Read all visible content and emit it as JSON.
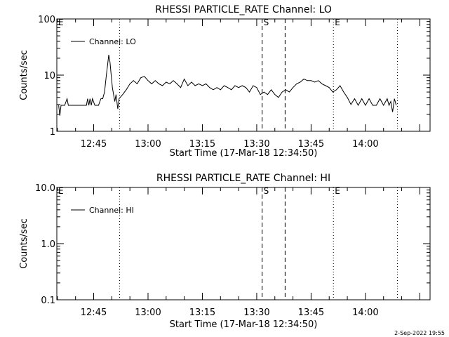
{
  "footer": {
    "timestamp": "2-Sep-2022 19:55"
  },
  "chart_data": [
    {
      "type": "line",
      "title": "RHESSI PARTICLE_RATE Channel: LO",
      "xlabel": "Start Time (17-Mar-18 12:34:50)",
      "ylabel": "Counts/sec",
      "yscale": "log",
      "ylim": [
        1,
        100
      ],
      "xlim": [
        "12:34:50",
        "14:17:50"
      ],
      "y_ticks": [
        {
          "value": 1,
          "label": "1"
        },
        {
          "value": 10,
          "label": "10"
        },
        {
          "value": 100,
          "label": "100"
        }
      ],
      "x_ticks": [
        "12:45",
        "13:00",
        "13:15",
        "13:30",
        "13:45",
        "14:00"
      ],
      "legend": {
        "label": "Channel: LO",
        "position": "top-left"
      },
      "markers": [
        {
          "time": "12:34:50",
          "label": "E",
          "style": "dotted"
        },
        {
          "time": "12:52:10",
          "label": "",
          "style": "dotted"
        },
        {
          "time": "13:31:30",
          "label": "S",
          "style": "dashed"
        },
        {
          "time": "13:37:50",
          "label": "",
          "style": "dashed"
        },
        {
          "time": "13:51:10",
          "label": "E",
          "style": "dotted"
        },
        {
          "time": "14:08:50",
          "label": "",
          "style": "dotted"
        }
      ],
      "series": [
        {
          "name": "Channel: LO",
          "points": [
            [
              "12:35:20",
              2.9
            ],
            [
              "12:35:40",
              1.9
            ],
            [
              "12:36:00",
              2.9
            ],
            [
              "12:37:00",
              2.9
            ],
            [
              "12:37:40",
              3.8
            ],
            [
              "12:38:00",
              2.9
            ],
            [
              "12:42:00",
              2.9
            ],
            [
              "12:43:00",
              2.9
            ],
            [
              "12:43:20",
              3.8
            ],
            [
              "12:43:40",
              2.9
            ],
            [
              "12:44:00",
              3.8
            ],
            [
              "12:44:20",
              2.9
            ],
            [
              "12:44:40",
              3.8
            ],
            [
              "12:45:20",
              2.9
            ],
            [
              "12:46:20",
              2.9
            ],
            [
              "12:47:00",
              3.8
            ],
            [
              "12:47:30",
              3.8
            ],
            [
              "12:48:00",
              5.0
            ],
            [
              "12:48:30",
              10.0
            ],
            [
              "12:48:50",
              15.0
            ],
            [
              "12:49:10",
              23.0
            ],
            [
              "12:49:30",
              17.0
            ],
            [
              "12:49:50",
              10.0
            ],
            [
              "12:50:10",
              6.0
            ],
            [
              "12:50:30",
              4.5
            ],
            [
              "12:50:50",
              3.4
            ],
            [
              "12:51:10",
              4.5
            ],
            [
              "12:51:40",
              2.5
            ],
            [
              "12:52:00",
              3.8
            ],
            [
              "12:53:00",
              4.5
            ],
            [
              "12:54:00",
              5.5
            ],
            [
              "12:55:00",
              7.0
            ],
            [
              "12:56:00",
              8.0
            ],
            [
              "12:57:00",
              7.0
            ],
            [
              "12:58:00",
              9.0
            ],
            [
              "12:59:00",
              9.5
            ],
            [
              "13:00:00",
              8.0
            ],
            [
              "13:01:00",
              7.0
            ],
            [
              "13:02:00",
              8.0
            ],
            [
              "13:03:00",
              7.0
            ],
            [
              "13:04:00",
              6.5
            ],
            [
              "13:05:00",
              7.5
            ],
            [
              "13:06:00",
              7.0
            ],
            [
              "13:07:00",
              8.0
            ],
            [
              "13:08:00",
              7.0
            ],
            [
              "13:09:00",
              6.0
            ],
            [
              "13:10:00",
              8.5
            ],
            [
              "13:11:00",
              6.5
            ],
            [
              "13:12:00",
              7.5
            ],
            [
              "13:13:00",
              6.5
            ],
            [
              "13:14:00",
              7.0
            ],
            [
              "13:15:00",
              6.5
            ],
            [
              "13:16:00",
              7.0
            ],
            [
              "13:17:00",
              6.0
            ],
            [
              "13:18:00",
              5.5
            ],
            [
              "13:19:00",
              6.0
            ],
            [
              "13:20:00",
              5.5
            ],
            [
              "13:21:00",
              6.5
            ],
            [
              "13:22:00",
              6.0
            ],
            [
              "13:23:00",
              5.5
            ],
            [
              "13:24:00",
              6.5
            ],
            [
              "13:25:00",
              6.0
            ],
            [
              "13:26:00",
              6.5
            ],
            [
              "13:27:00",
              6.0
            ],
            [
              "13:28:00",
              5.0
            ],
            [
              "13:29:00",
              6.5
            ],
            [
              "13:30:00",
              6.0
            ],
            [
              "13:31:00",
              4.5
            ],
            [
              "13:32:00",
              5.0
            ],
            [
              "13:33:00",
              4.5
            ],
            [
              "13:34:00",
              5.5
            ],
            [
              "13:35:00",
              4.5
            ],
            [
              "13:36:00",
              4.0
            ],
            [
              "13:37:00",
              5.0
            ],
            [
              "13:38:00",
              5.5
            ],
            [
              "13:39:00",
              5.0
            ],
            [
              "13:40:00",
              6.0
            ],
            [
              "13:41:00",
              7.0
            ],
            [
              "13:42:00",
              7.5
            ],
            [
              "13:43:00",
              8.5
            ],
            [
              "13:44:00",
              8.0
            ],
            [
              "13:45:00",
              8.0
            ],
            [
              "13:46:00",
              7.5
            ],
            [
              "13:47:00",
              8.0
            ],
            [
              "13:48:00",
              7.0
            ],
            [
              "13:49:00",
              6.5
            ],
            [
              "13:50:00",
              6.0
            ],
            [
              "13:51:00",
              5.0
            ],
            [
              "13:52:00",
              5.5
            ],
            [
              "13:53:00",
              6.5
            ],
            [
              "13:54:00",
              5.0
            ],
            [
              "13:55:00",
              4.0
            ],
            [
              "13:56:00",
              3.0
            ],
            [
              "13:57:00",
              3.8
            ],
            [
              "13:58:00",
              2.9
            ],
            [
              "13:59:00",
              3.8
            ],
            [
              "14:00:00",
              2.9
            ],
            [
              "14:01:00",
              3.8
            ],
            [
              "14:02:00",
              2.9
            ],
            [
              "14:03:00",
              2.9
            ],
            [
              "14:04:00",
              3.8
            ],
            [
              "14:05:00",
              2.9
            ],
            [
              "14:06:00",
              3.8
            ],
            [
              "14:06:30",
              2.9
            ],
            [
              "14:07:00",
              3.4
            ],
            [
              "14:07:30",
              2.2
            ],
            [
              "14:08:00",
              3.8
            ],
            [
              "14:08:30",
              2.9
            ]
          ]
        }
      ]
    },
    {
      "type": "line",
      "title": "RHESSI PARTICLE_RATE Channel: HI",
      "xlabel": "Start Time (17-Mar-18 12:34:50)",
      "ylabel": "Counts/sec",
      "yscale": "log",
      "ylim": [
        0.1,
        10
      ],
      "xlim": [
        "12:34:50",
        "14:17:50"
      ],
      "y_ticks": [
        {
          "value": 0.1,
          "label": "0.1"
        },
        {
          "value": 1,
          "label": "1.0"
        },
        {
          "value": 10,
          "label": "10.0"
        }
      ],
      "x_ticks": [
        "12:45",
        "13:00",
        "13:15",
        "13:30",
        "13:45",
        "14:00"
      ],
      "legend": {
        "label": "Channel: HI",
        "position": "top-left"
      },
      "markers": [
        {
          "time": "12:34:50",
          "label": "E",
          "style": "dotted"
        },
        {
          "time": "12:52:10",
          "label": "",
          "style": "dotted"
        },
        {
          "time": "13:31:30",
          "label": "S",
          "style": "dashed"
        },
        {
          "time": "13:37:50",
          "label": "",
          "style": "dashed"
        },
        {
          "time": "13:51:10",
          "label": "E",
          "style": "dotted"
        },
        {
          "time": "14:08:50",
          "label": "",
          "style": "dotted"
        }
      ],
      "series": [
        {
          "name": "Channel: HI",
          "points": []
        }
      ]
    }
  ]
}
